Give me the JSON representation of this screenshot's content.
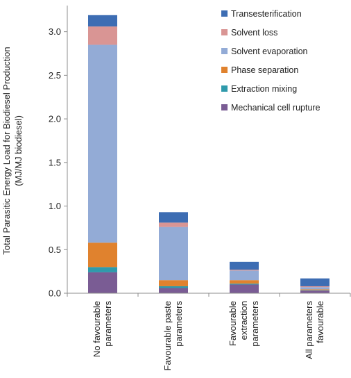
{
  "chart_data": {
    "type": "bar",
    "stacked": true,
    "categories": [
      [
        "No favourable",
        "parameters"
      ],
      [
        "Favourable paste",
        "parameters"
      ],
      [
        "Favourable",
        "extraction",
        "parameters"
      ],
      [
        "All parameters",
        "favourable"
      ]
    ],
    "ylabel": [
      "Total Parasitic Energy Load for Biodiesel Production",
      "(MJ/MJ biodiesel)"
    ],
    "ylim": [
      0,
      3.3
    ],
    "yticks": [
      "0.0",
      "0.5",
      "1.0",
      "1.5",
      "2.0",
      "2.5",
      "3.0"
    ],
    "ytick_values": [
      0,
      0.5,
      1.0,
      1.5,
      2.0,
      2.5,
      3.0
    ],
    "grid": false,
    "legend_position": "top-right",
    "series": [
      {
        "name": "Mechanical cell rupture",
        "color": "#7a5c94",
        "values": [
          0.24,
          0.06,
          0.1,
          0.03
        ]
      },
      {
        "name": "Extraction mixing",
        "color": "#2f9aab",
        "values": [
          0.06,
          0.02,
          0.01,
          0.005
        ]
      },
      {
        "name": "Phase separation",
        "color": "#e0822e",
        "values": [
          0.28,
          0.07,
          0.04,
          0.01
        ]
      },
      {
        "name": "Solvent evaporation",
        "color": "#93abd6",
        "values": [
          2.27,
          0.61,
          0.11,
          0.025
        ]
      },
      {
        "name": "Solvent loss",
        "color": "#d99594",
        "values": [
          0.21,
          0.05,
          0.01,
          0.01
        ]
      },
      {
        "name": "Transesterification",
        "color": "#3d6db3",
        "values": [
          0.13,
          0.12,
          0.09,
          0.09
        ]
      }
    ],
    "legend_order": [
      "Transesterification",
      "Solvent loss",
      "Solvent evaporation",
      "Phase separation",
      "Extraction mixing",
      "Mechanical cell rupture"
    ]
  }
}
